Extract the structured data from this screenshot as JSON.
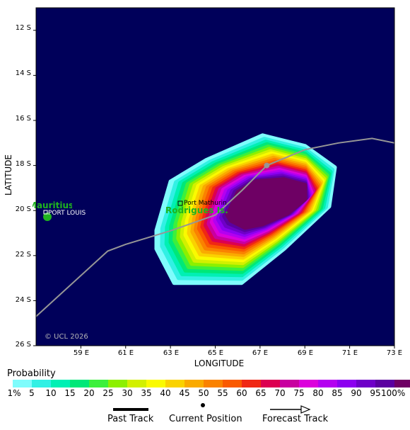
{
  "axes": {
    "ylabel": "LATITUDE",
    "xlabel": "LONGITUDE",
    "lat_ticks": [
      "12 S",
      "14 S",
      "16 S",
      "18 S",
      "20 S",
      "22 S",
      "24 S",
      "26 S"
    ],
    "lon_ticks": [
      "59 E",
      "61 E",
      "63 E",
      "65 E",
      "67 E",
      "69 E",
      "71 E",
      "73 E"
    ]
  },
  "places": {
    "mauritius": "Mauritius",
    "port_louis": "PORT LOUIS",
    "port_mathurin": "Port Mathurin",
    "rodrigues": "Rodrigues Is."
  },
  "copyright": "© UCL 2026",
  "probability": {
    "title": "Probability",
    "labels": [
      "1%",
      "5",
      "10",
      "15",
      "20",
      "25",
      "30",
      "35",
      "40",
      "45",
      "50",
      "55",
      "60",
      "65",
      "70",
      "75",
      "80",
      "85",
      "90",
      "95",
      "100%"
    ],
    "colors": [
      "#7ffcfc",
      "#32f0e4",
      "#00f0b4",
      "#00e878",
      "#3cf03c",
      "#8cf000",
      "#d2f000",
      "#fafa00",
      "#fad200",
      "#faaa00",
      "#fa8200",
      "#fa5a00",
      "#f02814",
      "#dc0050",
      "#c800a0",
      "#dc00dc",
      "#b400f0",
      "#8c00f0",
      "#6e00c8",
      "#5a00a0",
      "#6e0064"
    ]
  },
  "legend": {
    "past_track": "Past Track",
    "current_position": "Current Position",
    "forecast_track": "Forecast Track"
  },
  "colors": {
    "background": "#00005a",
    "track": "#969696",
    "land": "#1fb41f"
  },
  "chart_data": {
    "type": "heatmap",
    "title": "",
    "xlabel": "LONGITUDE",
    "ylabel": "LATITUDE",
    "xlim": [
      57,
      73
    ],
    "ylim": [
      -26,
      -11
    ],
    "track": [
      {
        "lon": 57.0,
        "lat": -24.7
      },
      {
        "lon": 60.2,
        "lat": -21.8
      },
      {
        "lon": 61.0,
        "lat": -21.5
      },
      {
        "lon": 63.0,
        "lat": -20.9
      },
      {
        "lon": 65.0,
        "lat": -20.2
      },
      {
        "lon": 66.2,
        "lat": -19.1
      },
      {
        "lon": 67.3,
        "lat": -18.0
      },
      {
        "lon": 69.0,
        "lat": -17.3
      },
      {
        "lon": 70.5,
        "lat": -17.0
      },
      {
        "lon": 72.0,
        "lat": -16.8
      },
      {
        "lon": 73.0,
        "lat": -17.0
      }
    ],
    "current_position": {
      "lon": 67.3,
      "lat": -18.0
    },
    "probability_center": {
      "lon": 66.8,
      "lat": -19.5
    }
  }
}
